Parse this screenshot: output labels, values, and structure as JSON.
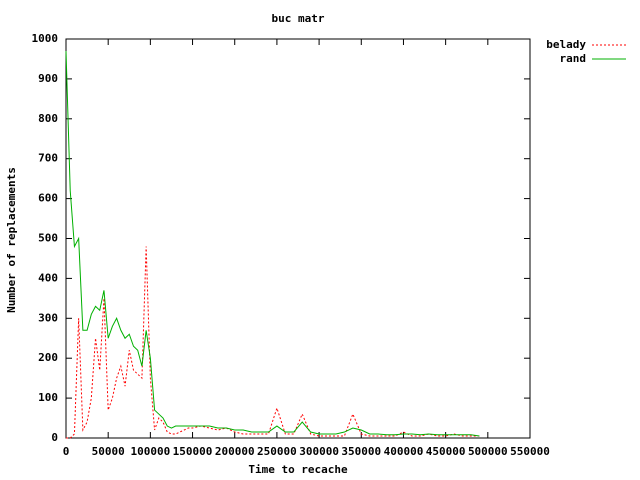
{
  "chart_data": {
    "type": "line",
    "title": "buc matr",
    "x_label": "Time to recache",
    "y_label": "Number of replacements",
    "x": [
      0,
      5000,
      10000,
      15000,
      20000,
      25000,
      30000,
      35000,
      40000,
      45000,
      50000,
      55000,
      60000,
      65000,
      70000,
      75000,
      80000,
      85000,
      90000,
      95000,
      100000,
      105000,
      110000,
      115000,
      120000,
      125000,
      130000,
      135000,
      140000,
      145000,
      150000,
      160000,
      170000,
      180000,
      190000,
      200000,
      210000,
      220000,
      230000,
      240000,
      250000,
      260000,
      270000,
      280000,
      290000,
      300000,
      310000,
      320000,
      330000,
      340000,
      350000,
      360000,
      370000,
      380000,
      390000,
      400000,
      410000,
      420000,
      430000,
      440000,
      450000,
      460000,
      470000,
      480000,
      490000
    ],
    "series": [
      {
        "name": "belady",
        "color": "#ff0000",
        "dash": true,
        "values": [
          0,
          0,
          10,
          300,
          20,
          40,
          100,
          250,
          170,
          350,
          70,
          100,
          150,
          180,
          130,
          220,
          170,
          160,
          150,
          480,
          150,
          20,
          50,
          40,
          15,
          10,
          10,
          15,
          20,
          25,
          25,
          30,
          25,
          20,
          25,
          15,
          10,
          10,
          10,
          10,
          75,
          10,
          10,
          60,
          10,
          5,
          5,
          5,
          5,
          60,
          10,
          5,
          5,
          5,
          5,
          15,
          5,
          5,
          10,
          5,
          5,
          10,
          5,
          5,
          5
        ]
      },
      {
        "name": "rand",
        "color": "#00b000",
        "dash": false,
        "values": [
          970,
          620,
          480,
          500,
          270,
          270,
          310,
          330,
          320,
          370,
          250,
          280,
          300,
          270,
          250,
          260,
          230,
          220,
          180,
          270,
          200,
          70,
          60,
          50,
          30,
          25,
          30,
          30,
          30,
          30,
          30,
          30,
          30,
          25,
          25,
          20,
          20,
          15,
          15,
          15,
          30,
          15,
          15,
          40,
          15,
          10,
          10,
          10,
          15,
          25,
          20,
          10,
          10,
          8,
          8,
          10,
          10,
          8,
          10,
          8,
          8,
          8,
          8,
          8,
          5
        ]
      }
    ],
    "xlim": [
      0,
      550000
    ],
    "xticks": [
      0,
      50000,
      100000,
      150000,
      200000,
      250000,
      300000,
      350000,
      400000,
      450000,
      500000,
      550000
    ],
    "ylim": [
      0,
      1000
    ],
    "yticks": [
      0,
      100,
      200,
      300,
      400,
      500,
      600,
      700,
      800,
      900,
      1000
    ],
    "legend": "top-right"
  }
}
